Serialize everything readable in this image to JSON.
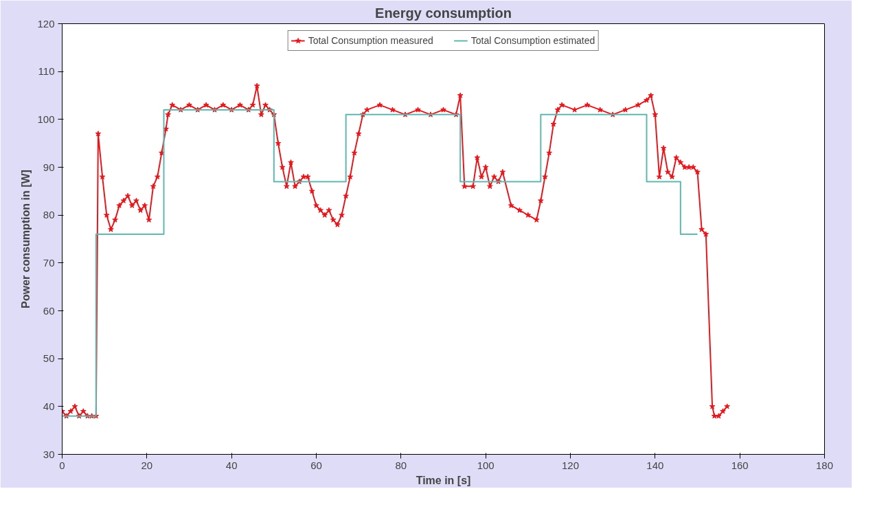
{
  "chart_data": {
    "type": "line",
    "title": "Energy consumption",
    "xlabel": "Time in [s]",
    "ylabel": "Power consumption in [W]",
    "xlim": [
      0,
      180
    ],
    "xticks": [
      0,
      20,
      40,
      60,
      80,
      100,
      120,
      140,
      160,
      180
    ],
    "ylim": [
      30,
      120
    ],
    "yticks": [
      30,
      40,
      50,
      60,
      70,
      80,
      90,
      100,
      110,
      120
    ],
    "grid": false,
    "legend": "top",
    "series": [
      {
        "name": "Total Consumption measured",
        "color": "#e8161b",
        "marker": "star",
        "x": [
          0,
          1,
          2,
          3,
          4,
          5,
          6,
          7,
          8,
          8.5,
          9.5,
          10.5,
          11.5,
          12.5,
          13.5,
          14.5,
          15.5,
          16.5,
          17.5,
          18.5,
          19.5,
          20.5,
          21.5,
          22.5,
          23.5,
          24.5,
          25,
          26,
          28,
          30,
          32,
          34,
          36,
          38,
          40,
          42,
          44,
          45,
          46,
          47,
          48,
          49,
          50,
          51,
          52,
          53,
          54,
          55,
          56,
          57,
          58,
          59,
          60,
          61,
          62,
          63,
          64,
          65,
          66,
          67,
          68,
          69,
          70,
          71,
          72,
          75,
          78,
          81,
          84,
          87,
          90,
          93,
          94,
          95,
          97,
          98,
          99,
          100,
          101,
          102,
          103,
          104,
          106,
          108,
          110,
          112,
          113,
          114,
          115,
          116,
          117,
          118,
          121,
          124,
          127,
          130,
          133,
          136,
          138,
          139,
          140,
          141,
          142,
          143,
          144,
          145,
          146,
          147,
          148,
          149,
          150,
          151,
          152,
          153.5,
          154,
          155,
          156,
          157
        ],
        "values": [
          39,
          38,
          39,
          40,
          38,
          39,
          38,
          38,
          38,
          97,
          88,
          80,
          77,
          79,
          82,
          83,
          84,
          82,
          83,
          81,
          82,
          79,
          86,
          88,
          93,
          98,
          101,
          103,
          102,
          103,
          102,
          103,
          102,
          103,
          102,
          103,
          102,
          103,
          107,
          101,
          103,
          102,
          101,
          95,
          90,
          86,
          91,
          86,
          87,
          88,
          88,
          85,
          82,
          81,
          80,
          81,
          79,
          78,
          80,
          84,
          88,
          93,
          97,
          101,
          102,
          103,
          102,
          101,
          102,
          101,
          102,
          101,
          105,
          86,
          86,
          92,
          88,
          90,
          86,
          88,
          87,
          89,
          82,
          81,
          80,
          79,
          83,
          88,
          93,
          99,
          102,
          103,
          102,
          103,
          102,
          101,
          102,
          103,
          104,
          105,
          101,
          88,
          94,
          89,
          88,
          92,
          91,
          90,
          90,
          90,
          89,
          77,
          76,
          40,
          38,
          38,
          39,
          40
        ]
      },
      {
        "name": "Total Consumption estimated",
        "type": "step",
        "color": "#5fb8b0",
        "marker": "none",
        "x": [
          0,
          8,
          24,
          50,
          67,
          94,
          113,
          138,
          146,
          150
        ],
        "values": [
          38,
          76,
          102,
          87,
          101,
          87,
          101,
          87,
          76,
          76
        ]
      }
    ]
  }
}
